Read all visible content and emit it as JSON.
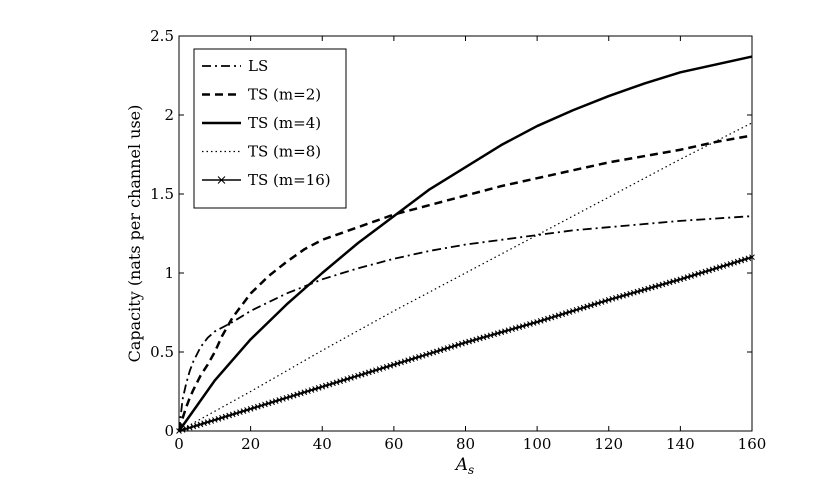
{
  "chart_data": {
    "type": "line",
    "title": "",
    "xlabel": "A",
    "xlabel_subscript": "s",
    "ylabel": "Capacity (nats per channel use)",
    "xlim": [
      0,
      160
    ],
    "ylim": [
      0,
      2.5
    ],
    "x_ticks": [
      0,
      20,
      40,
      60,
      80,
      100,
      120,
      140,
      160
    ],
    "x_tick_labels": [
      "0",
      "20",
      "40",
      "60",
      "80",
      "100",
      "120",
      "140",
      "160"
    ],
    "y_ticks": [
      0,
      0.5,
      1,
      1.5,
      2,
      2.5
    ],
    "y_tick_labels": [
      "0",
      "0.5",
      "1",
      "1.5",
      "2",
      "2.5"
    ],
    "grid": false,
    "legend_position": "top-left",
    "series": [
      {
        "name": "LS",
        "style": "dashdot",
        "marker": "none",
        "x": [
          0,
          1,
          2,
          3,
          4,
          6,
          8,
          10,
          15,
          20,
          30,
          40,
          50,
          60,
          70,
          80,
          90,
          100,
          110,
          120,
          130,
          140,
          150,
          160
        ],
        "y": [
          0,
          0.2,
          0.3,
          0.38,
          0.44,
          0.53,
          0.59,
          0.63,
          0.69,
          0.76,
          0.87,
          0.96,
          1.03,
          1.09,
          1.14,
          1.18,
          1.21,
          1.24,
          1.27,
          1.29,
          1.31,
          1.33,
          1.345,
          1.36
        ]
      },
      {
        "name": "TS (m=2)",
        "style": "dashed",
        "marker": "none",
        "x": [
          0,
          1,
          2,
          3,
          4,
          6,
          8,
          10,
          12,
          15,
          20,
          25,
          30,
          35,
          40,
          50,
          60,
          70,
          80,
          90,
          100,
          110,
          120,
          130,
          140,
          150,
          160
        ],
        "y": [
          0,
          0.08,
          0.15,
          0.21,
          0.26,
          0.35,
          0.42,
          0.5,
          0.6,
          0.72,
          0.87,
          0.98,
          1.07,
          1.15,
          1.21,
          1.29,
          1.37,
          1.43,
          1.49,
          1.55,
          1.6,
          1.65,
          1.7,
          1.74,
          1.78,
          1.83,
          1.87
        ]
      },
      {
        "name": "TS (m=4)",
        "style": "solid",
        "marker": "none",
        "x": [
          0,
          5,
          10,
          20,
          30,
          40,
          50,
          60,
          70,
          80,
          90,
          100,
          110,
          120,
          130,
          140,
          150,
          160
        ],
        "y": [
          0,
          0.16,
          0.32,
          0.58,
          0.8,
          1.0,
          1.19,
          1.36,
          1.53,
          1.67,
          1.81,
          1.93,
          2.03,
          2.12,
          2.2,
          2.27,
          2.32,
          2.37
        ]
      },
      {
        "name": "TS (m=8)",
        "style": "dotted",
        "marker": "none",
        "x": [
          0,
          20,
          40,
          60,
          80,
          100,
          120,
          140,
          160
        ],
        "y": [
          0,
          0.25,
          0.51,
          0.76,
          1.0,
          1.24,
          1.48,
          1.72,
          1.95
        ]
      },
      {
        "name": "TS (m=16)",
        "style": "solid",
        "marker": "x",
        "x": [
          0,
          20,
          40,
          60,
          80,
          100,
          120,
          140,
          160
        ],
        "y": [
          0,
          0.14,
          0.28,
          0.42,
          0.56,
          0.69,
          0.83,
          0.96,
          1.1
        ]
      }
    ]
  }
}
